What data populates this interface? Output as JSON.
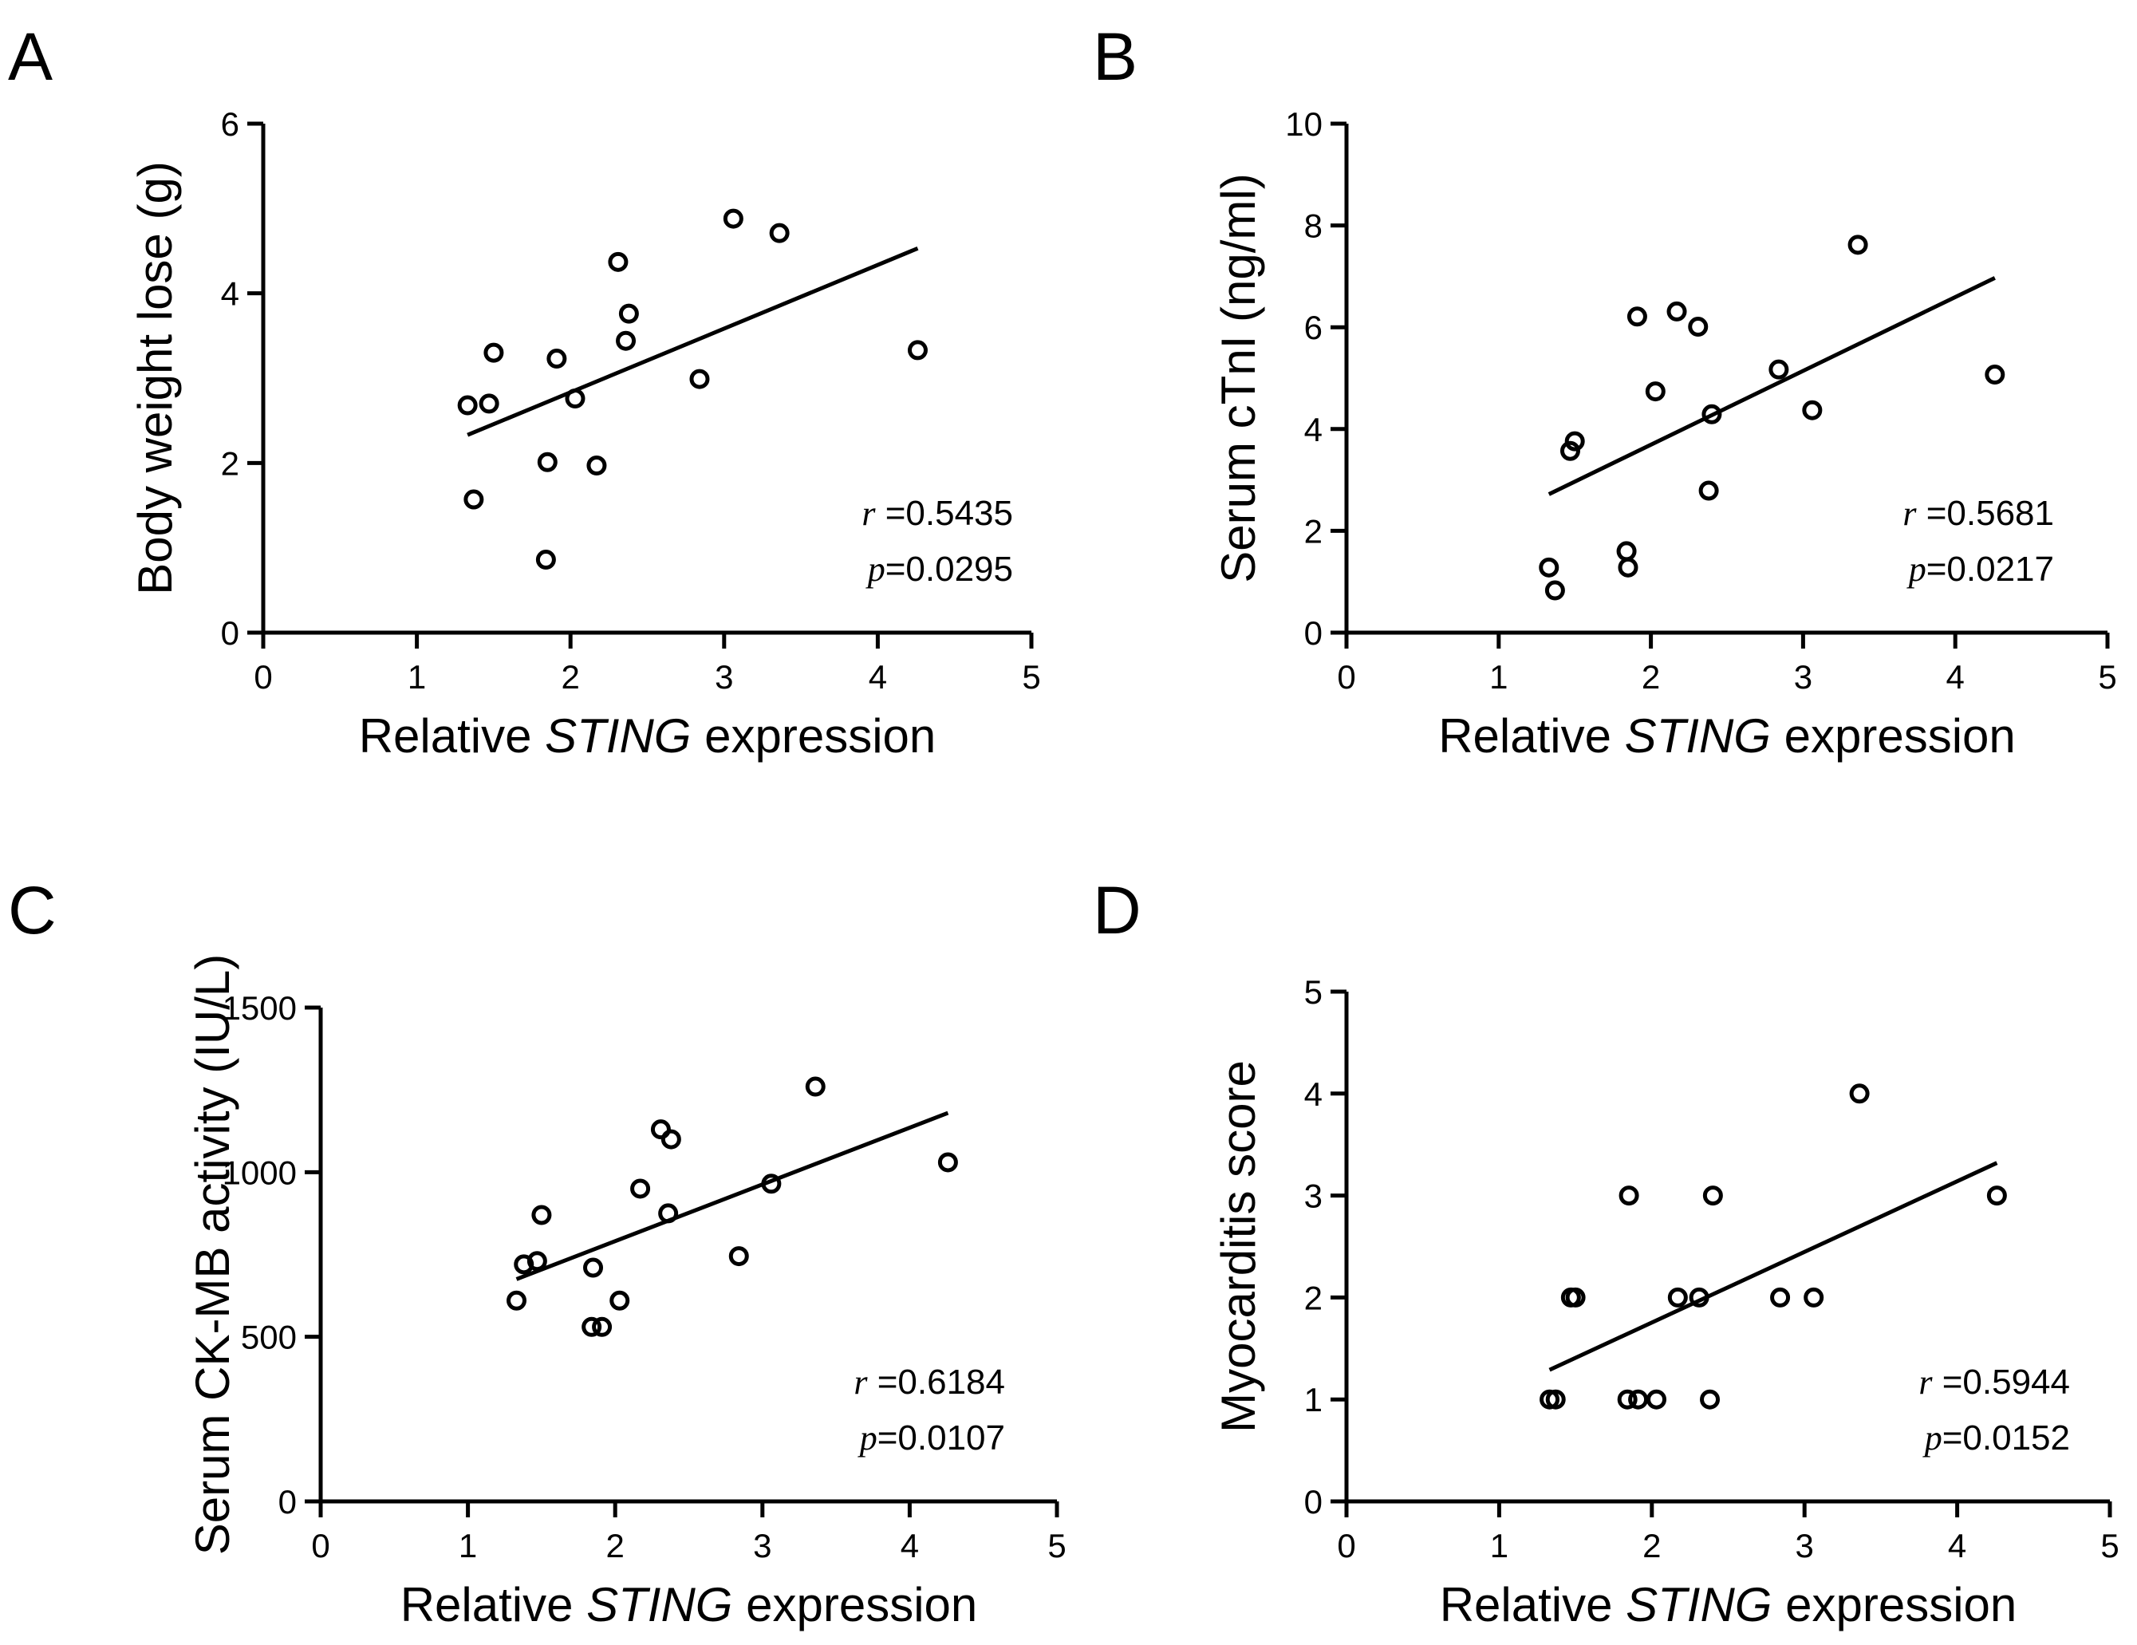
{
  "figure": {
    "background": "#ffffff",
    "ink": "#000000"
  },
  "chart_data": [
    {
      "type": "scatter",
      "panel": "A",
      "title": "",
      "xlabel_pre": "Relative ",
      "xlabel_ital": "STING",
      "xlabel_post": " expression",
      "ylabel": "Body weight lose (g)",
      "xlim": [
        0,
        5
      ],
      "ylim": [
        0,
        6
      ],
      "xticks": [
        0,
        1,
        2,
        3,
        4,
        5
      ],
      "yticks": [
        0,
        2,
        4,
        6
      ],
      "tick_labels_x": [
        "0",
        "1",
        "2",
        "3",
        "4",
        "5"
      ],
      "tick_labels_y": [
        "0",
        "2",
        "4",
        "6"
      ],
      "x": [
        1.33,
        1.37,
        1.47,
        1.5,
        1.84,
        1.85,
        1.91,
        2.03,
        2.17,
        2.31,
        2.36,
        2.38,
        2.84,
        3.06,
        3.36,
        4.26
      ],
      "y": [
        2.68,
        1.57,
        2.7,
        3.3,
        0.86,
        2.01,
        3.23,
        2.76,
        1.97,
        4.37,
        3.44,
        3.76,
        2.99,
        4.88,
        4.71,
        3.33
      ],
      "fit": {
        "x": [
          1.33,
          4.26
        ],
        "y": [
          2.33,
          4.53
        ]
      },
      "r_label": "r",
      "r_value": " =0.5435",
      "p_label": "p",
      "p_value": "=0.0295",
      "grid": false
    },
    {
      "type": "scatter",
      "panel": "B",
      "title": "",
      "xlabel_pre": "Relative ",
      "xlabel_ital": "STING",
      "xlabel_post": " expression",
      "ylabel": "Serum cTnI (ng/ml)",
      "xlim": [
        0,
        5
      ],
      "ylim": [
        0,
        10
      ],
      "xticks": [
        0,
        1,
        2,
        3,
        4,
        5
      ],
      "yticks": [
        0,
        2,
        4,
        6,
        8,
        10
      ],
      "tick_labels_x": [
        "0",
        "1",
        "2",
        "3",
        "4",
        "5"
      ],
      "tick_labels_y": [
        "0",
        "2",
        "4",
        "6",
        "8",
        "10"
      ],
      "x": [
        1.33,
        1.37,
        1.47,
        1.5,
        1.84,
        1.85,
        1.91,
        2.03,
        2.17,
        2.31,
        2.38,
        2.4,
        2.84,
        3.06,
        3.36,
        4.26
      ],
      "y": [
        1.28,
        0.83,
        3.57,
        3.76,
        1.6,
        1.28,
        6.21,
        4.74,
        6.31,
        6.01,
        2.79,
        4.29,
        5.17,
        4.37,
        7.62,
        5.07
      ],
      "fit": {
        "x": [
          1.33,
          4.26
        ],
        "y": [
          2.72,
          6.97
        ]
      },
      "r_label": "r",
      "r_value": " =0.5681",
      "p_label": "p",
      "p_value": "=0.0217",
      "grid": false
    },
    {
      "type": "scatter",
      "panel": "C",
      "title": "",
      "xlabel_pre": "Relative ",
      "xlabel_ital": "STING",
      "xlabel_post": " expression",
      "ylabel": "Serum CK-MB activity (IU/L)",
      "xlim": [
        0,
        5
      ],
      "ylim": [
        0,
        1500
      ],
      "xticks": [
        0,
        1,
        2,
        3,
        4,
        5
      ],
      "yticks": [
        0,
        500,
        1000,
        1500
      ],
      "tick_labels_x": [
        "0",
        "1",
        "2",
        "3",
        "4",
        "5"
      ],
      "tick_labels_y": [
        "0",
        "500",
        "1000",
        "1500"
      ],
      "x": [
        1.33,
        1.38,
        1.47,
        1.5,
        1.84,
        1.85,
        1.91,
        2.03,
        2.17,
        2.31,
        2.36,
        2.38,
        2.84,
        3.06,
        3.36,
        4.26
      ],
      "y": [
        610,
        720,
        730,
        870,
        530,
        710,
        530,
        610,
        950,
        1130,
        875,
        1100,
        745,
        965,
        1260,
        1030
      ],
      "fit": {
        "x": [
          1.33,
          4.26
        ],
        "y": [
          675,
          1180
        ]
      },
      "r_label": "r",
      "r_value": " =0.6184",
      "p_label": "p",
      "p_value": "=0.0107",
      "grid": false
    },
    {
      "type": "scatter",
      "panel": "D",
      "title": "",
      "xlabel_pre": "Relative ",
      "xlabel_ital": "STING",
      "xlabel_post": " expression",
      "ylabel": "Myocarditis score",
      "xlim": [
        0,
        5
      ],
      "ylim": [
        0,
        5
      ],
      "xticks": [
        0,
        1,
        2,
        3,
        4,
        5
      ],
      "yticks": [
        0,
        1,
        2,
        3,
        4,
        5
      ],
      "tick_labels_x": [
        "0",
        "1",
        "2",
        "3",
        "4",
        "5"
      ],
      "tick_labels_y": [
        "0",
        "1",
        "2",
        "3",
        "4",
        "5"
      ],
      "x": [
        1.33,
        1.37,
        1.47,
        1.5,
        1.84,
        1.85,
        1.91,
        2.03,
        2.17,
        2.31,
        2.38,
        2.4,
        2.84,
        3.06,
        3.36,
        4.26
      ],
      "y": [
        1,
        1,
        2,
        2,
        1,
        3,
        1,
        1,
        2,
        2,
        1,
        3,
        2,
        2,
        4,
        3
      ],
      "fit": {
        "x": [
          1.33,
          4.26
        ],
        "y": [
          1.29,
          3.32
        ]
      },
      "r_label": "r",
      "r_value": " =0.5944",
      "p_label": "p",
      "p_value": "=0.0152",
      "grid": false
    }
  ]
}
